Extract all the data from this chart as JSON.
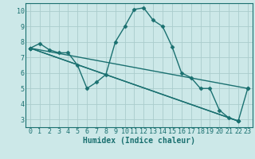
{
  "xlabel": "Humidex (Indice chaleur)",
  "background_color": "#cce8e8",
  "grid_color": "#aacccc",
  "line_color": "#1a7070",
  "spine_color": "#1a7070",
  "xlim": [
    -0.5,
    23.5
  ],
  "ylim": [
    2.5,
    10.5
  ],
  "xticks": [
    0,
    1,
    2,
    3,
    4,
    5,
    6,
    7,
    8,
    9,
    10,
    11,
    12,
    13,
    14,
    15,
    16,
    17,
    18,
    19,
    20,
    21,
    22,
    23
  ],
  "yticks": [
    3,
    4,
    5,
    6,
    7,
    8,
    9,
    10
  ],
  "main_line": {
    "x": [
      0,
      1,
      2,
      3,
      4,
      5,
      6,
      7,
      8,
      9,
      10,
      11,
      12,
      13,
      14,
      15,
      16,
      17,
      18,
      19,
      20,
      21,
      22,
      23
    ],
    "y": [
      7.6,
      7.9,
      7.5,
      7.3,
      7.3,
      6.5,
      5.0,
      5.4,
      5.9,
      8.0,
      9.0,
      10.1,
      10.2,
      9.4,
      9.0,
      7.7,
      6.0,
      5.7,
      5.0,
      5.0,
      3.6,
      3.1,
      2.9,
      5.0
    ]
  },
  "straight_lines": [
    {
      "x": [
        0,
        23
      ],
      "y": [
        7.6,
        5.0
      ]
    },
    {
      "x": [
        0,
        22
      ],
      "y": [
        7.6,
        2.9
      ]
    },
    {
      "x": [
        0,
        22
      ],
      "y": [
        7.6,
        2.9
      ]
    }
  ],
  "marker": "D",
  "markersize": 2.5,
  "linewidth": 1.0,
  "tick_fontsize": 6,
  "xlabel_fontsize": 7
}
